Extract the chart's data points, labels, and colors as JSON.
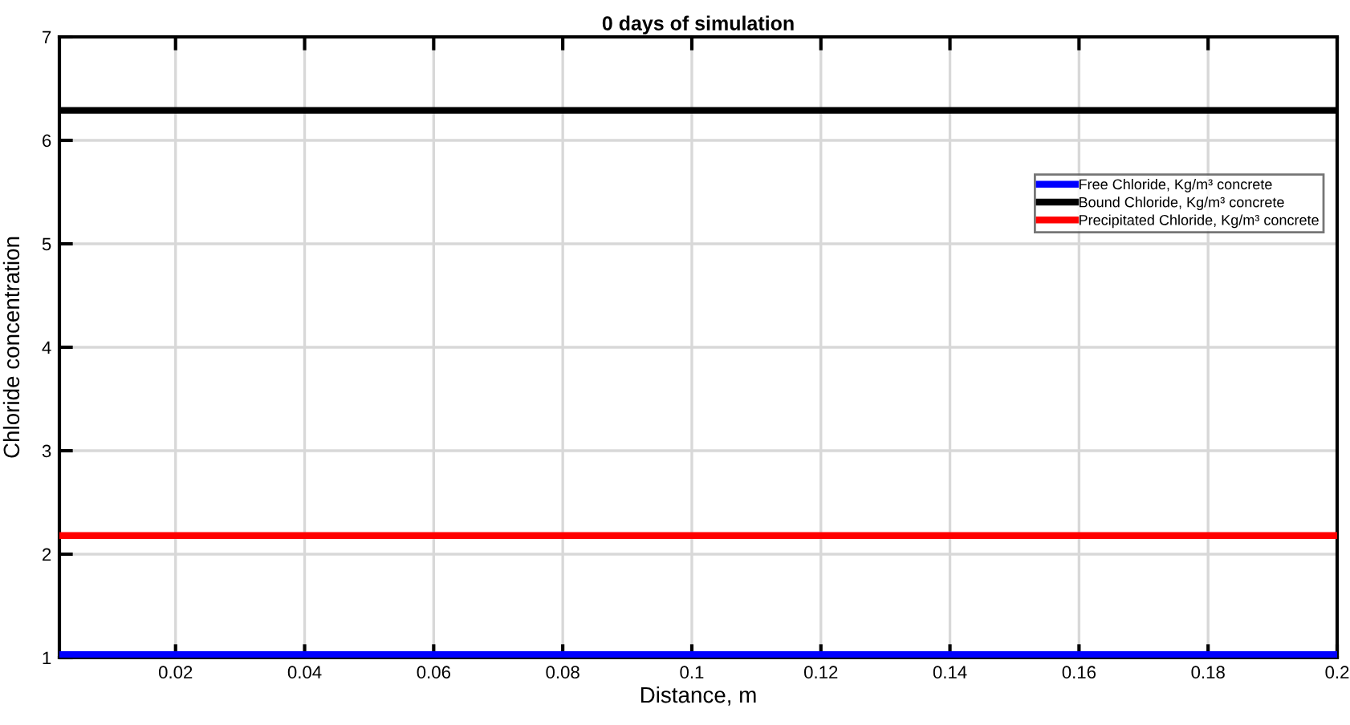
{
  "chart_data": {
    "type": "line",
    "title": "0 days of simulation",
    "xlabel": "Distance, m",
    "ylabel": "Chloride concentration",
    "x": [
      0.002,
      0.2
    ],
    "series": [
      {
        "name": "Free Chloride, Kg/m³ concrete",
        "color": "#0000ff",
        "values": [
          1.03,
          1.03
        ]
      },
      {
        "name": "Bound Chloride, Kg/m³ concrete",
        "color": "#000000",
        "values": [
          6.29,
          6.29
        ]
      },
      {
        "name": "Precipitated Chloride, Kg/m³ concrete",
        "color": "#ff0000",
        "values": [
          2.18,
          2.18
        ]
      }
    ],
    "xlim": [
      0.002,
      0.2
    ],
    "xticks": [
      0.02,
      0.04,
      0.06,
      0.08,
      0.1,
      0.12,
      0.14,
      0.16,
      0.18,
      0.2
    ],
    "ylim": [
      1,
      7
    ],
    "yticks": [
      1,
      2,
      3,
      4,
      5,
      6,
      7
    ],
    "grid": true,
    "legend": "top right",
    "marker": "none",
    "line_style": "solid"
  }
}
